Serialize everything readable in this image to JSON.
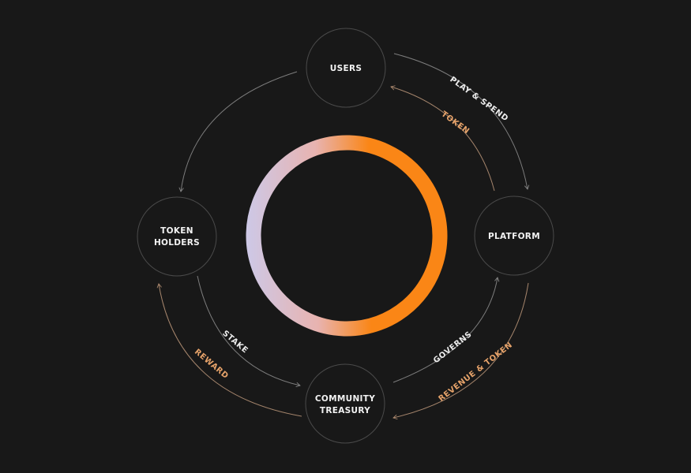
{
  "colors": {
    "background": "#181818",
    "ring_start": "#c6cef5",
    "ring_mid": "#e8b3b0",
    "ring_end": "#fa8616",
    "label_light": "#ececec",
    "label_warm": "#e7a36a"
  },
  "nodes": {
    "users": "USERS",
    "platform": "PLATFORM",
    "treasury_line1": "COMMUNITY",
    "treasury_line2": "TREASURY",
    "holders_line1": "TOKEN",
    "holders_line2": "HOLDERS"
  },
  "flows": {
    "play_spend": "PLAY & SPEND",
    "token": "TOKEN",
    "governs": "GOVERNS",
    "revenue_token": "REVENUE & TOKEN",
    "stake": "STAKE",
    "reward": "REWARD"
  }
}
